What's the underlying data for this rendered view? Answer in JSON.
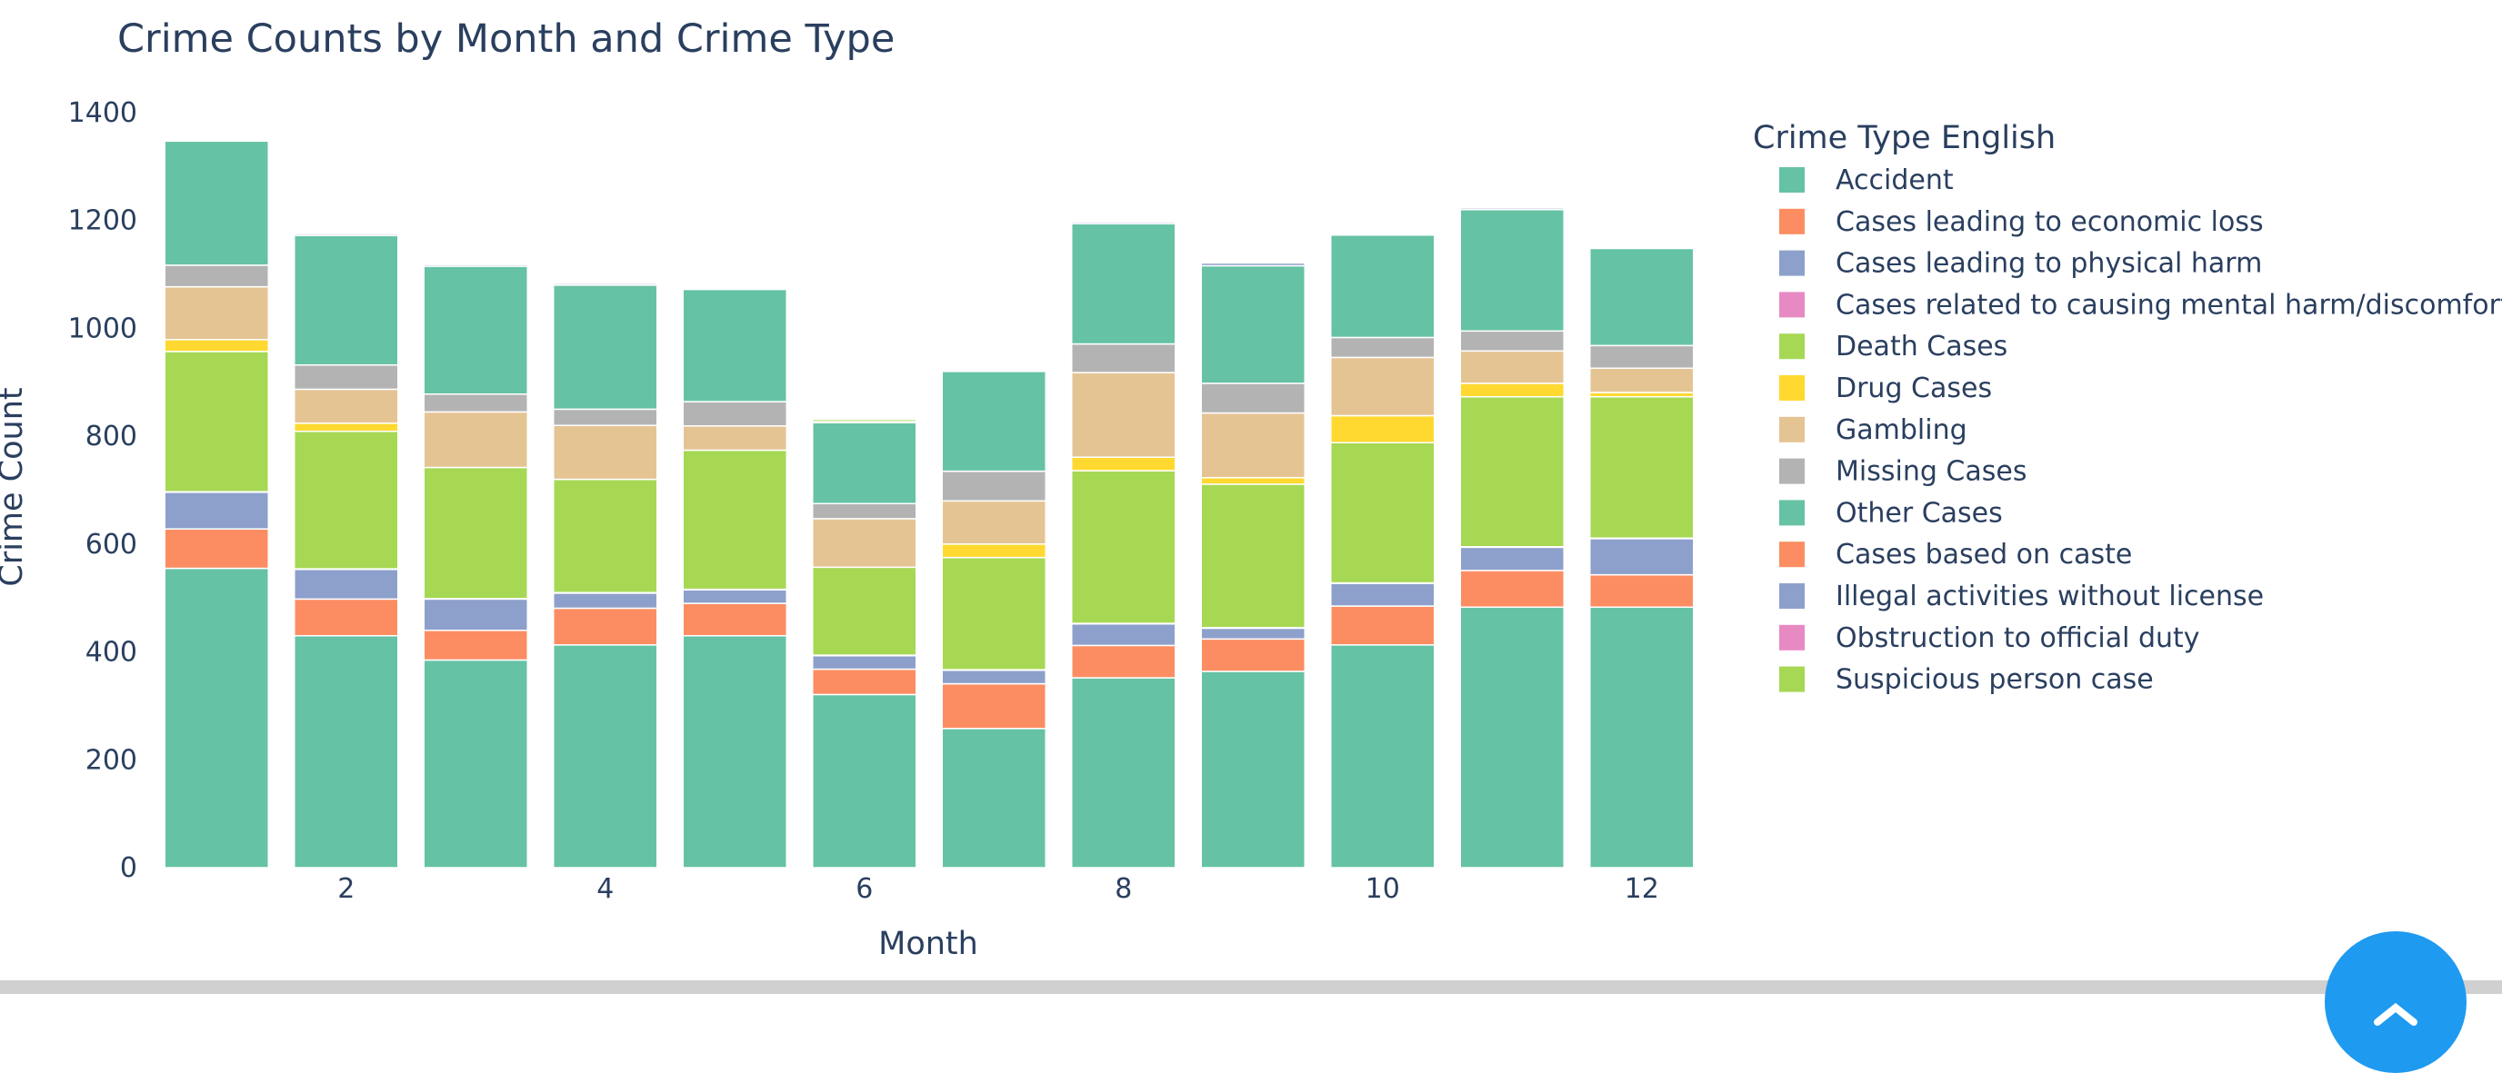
{
  "chart_data": {
    "type": "bar",
    "stacked": true,
    "title": "Crime Counts by Month and Crime Type",
    "xlabel": "Month",
    "ylabel": "Crime Count",
    "x": [
      1,
      2,
      3,
      4,
      5,
      6,
      7,
      8,
      9,
      10,
      11,
      12
    ],
    "xticks": [
      2,
      4,
      6,
      8,
      10,
      12
    ],
    "yticks": [
      0,
      200,
      400,
      600,
      800,
      1000,
      1200,
      1400
    ],
    "ylim": [
      0,
      1420
    ],
    "xlim": [
      0.5,
      12.5
    ],
    "legend_title": "Crime Type English",
    "legend_position": "right",
    "series": [
      {
        "name": "Accident",
        "color": "#66c2a5",
        "values": [
          555,
          430,
          385,
          413,
          430,
          321,
          258,
          352,
          364,
          413,
          483,
          483
        ]
      },
      {
        "name": "Cases leading to economic loss",
        "color": "#fc8d62",
        "values": [
          73,
          68,
          55,
          68,
          60,
          47,
          83,
          60,
          60,
          72,
          68,
          60
        ]
      },
      {
        "name": "Cases leading to physical harm",
        "color": "#8da0cb",
        "values": [
          68,
          55,
          58,
          28,
          25,
          25,
          25,
          40,
          20,
          42,
          43,
          67
        ]
      },
      {
        "name": "Cases related to causing mental harm/discomfort",
        "color": "#e78ac3",
        "values": [
          1,
          1,
          1,
          1,
          1,
          1,
          1,
          1,
          1,
          1,
          1,
          1
        ]
      },
      {
        "name": "Death Cases",
        "color": "#a6d854",
        "values": [
          260,
          255,
          243,
          210,
          258,
          163,
          208,
          283,
          266,
          260,
          278,
          262
        ]
      },
      {
        "name": "Drug Cases",
        "color": "#ffd92f",
        "values": [
          22,
          15,
          0,
          0,
          0,
          0,
          25,
          25,
          12,
          50,
          25,
          8
        ]
      },
      {
        "name": "Gambling",
        "color": "#e5c494",
        "values": [
          98,
          63,
          103,
          100,
          45,
          90,
          80,
          157,
          120,
          108,
          60,
          45
        ]
      },
      {
        "name": "Missing Cases",
        "color": "#b3b3b3",
        "values": [
          40,
          45,
          33,
          30,
          45,
          28,
          55,
          53,
          55,
          37,
          37,
          42
        ]
      },
      {
        "name": "Other Cases",
        "color": "#66c2a5",
        "values": [
          230,
          240,
          237,
          230,
          208,
          150,
          185,
          223,
          218,
          190,
          225,
          180
        ]
      },
      {
        "name": "Cases based on caste",
        "color": "#fc8d62",
        "values": [
          0,
          0,
          0,
          0,
          0,
          0,
          0,
          0,
          0,
          0,
          0,
          0
        ]
      },
      {
        "name": "Illegal activities without license",
        "color": "#8da0cb",
        "values": [
          0,
          3,
          3,
          3,
          0,
          2,
          0,
          3,
          5,
          2,
          3,
          0
        ]
      },
      {
        "name": "Obstruction to official duty",
        "color": "#e78ac3",
        "values": [
          0,
          0,
          0,
          0,
          0,
          0,
          0,
          0,
          0,
          0,
          0,
          0
        ]
      },
      {
        "name": "Suspicious person case",
        "color": "#a6d854",
        "values": [
          0,
          0,
          0,
          0,
          0,
          4,
          0,
          0,
          0,
          0,
          0,
          0
        ]
      }
    ]
  }
}
